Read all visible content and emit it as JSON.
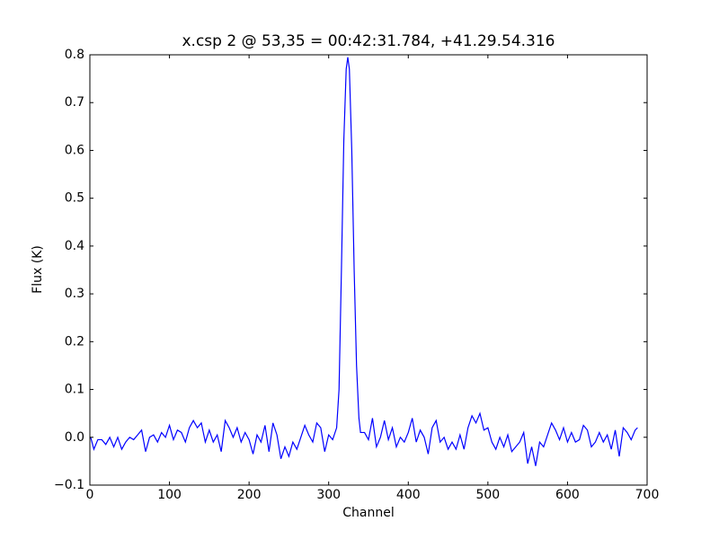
{
  "chart_data": {
    "type": "line",
    "title": "x.csp 2 @ 53,35 = 00:42:31.784, +41.29.54.316",
    "xlabel": "Channel",
    "ylabel": "Flux (K)",
    "color": "#0000ff",
    "xlim": [
      0,
      700
    ],
    "ylim": [
      -0.1,
      0.8
    ],
    "xticks": [
      0,
      100,
      200,
      300,
      400,
      500,
      600,
      700
    ],
    "yticks": [
      {
        "value": -0.1,
        "label": "−0.1"
      },
      {
        "value": 0,
        "label": "0.0"
      },
      0.1,
      0.2,
      0.3,
      0.4,
      0.5,
      0.6,
      0.7,
      0.8
    ],
    "x": [
      1,
      5,
      10,
      15,
      20,
      25,
      30,
      35,
      40,
      45,
      50,
      55,
      60,
      65,
      70,
      75,
      80,
      85,
      90,
      95,
      100,
      105,
      110,
      115,
      120,
      125,
      130,
      135,
      140,
      145,
      150,
      155,
      160,
      165,
      170,
      175,
      180,
      185,
      190,
      195,
      200,
      205,
      210,
      215,
      220,
      225,
      230,
      235,
      240,
      245,
      250,
      255,
      260,
      265,
      270,
      275,
      280,
      285,
      290,
      295,
      300,
      305,
      310,
      313,
      316,
      319,
      322,
      324,
      326,
      329,
      332,
      335,
      338,
      340,
      345,
      350,
      355,
      360,
      365,
      370,
      375,
      380,
      385,
      390,
      395,
      400,
      405,
      410,
      415,
      420,
      425,
      430,
      435,
      440,
      445,
      450,
      455,
      460,
      465,
      470,
      475,
      480,
      485,
      490,
      495,
      500,
      505,
      510,
      515,
      520,
      525,
      530,
      535,
      540,
      545,
      550,
      555,
      560,
      565,
      570,
      575,
      580,
      585,
      590,
      595,
      600,
      605,
      610,
      615,
      620,
      625,
      630,
      635,
      640,
      645,
      650,
      655,
      660,
      665,
      670,
      675,
      680,
      685,
      688
    ],
    "values": [
      0.0,
      -0.025,
      -0.005,
      -0.005,
      -0.015,
      0.0,
      -0.02,
      0.0,
      -0.025,
      -0.01,
      0.0,
      -0.005,
      0.005,
      0.015,
      -0.03,
      0.0,
      0.005,
      -0.01,
      0.01,
      0.0,
      0.025,
      -0.005,
      0.015,
      0.01,
      -0.01,
      0.02,
      0.035,
      0.02,
      0.03,
      -0.01,
      0.015,
      -0.01,
      0.005,
      -0.03,
      0.035,
      0.02,
      0.0,
      0.02,
      -0.01,
      0.01,
      -0.005,
      -0.035,
      0.005,
      -0.01,
      0.025,
      -0.03,
      0.03,
      0.005,
      -0.045,
      -0.02,
      -0.04,
      -0.01,
      -0.025,
      0.0,
      0.025,
      0.005,
      -0.01,
      0.03,
      0.02,
      -0.03,
      0.005,
      -0.005,
      0.02,
      0.1,
      0.35,
      0.62,
      0.77,
      0.795,
      0.77,
      0.6,
      0.35,
      0.15,
      0.04,
      0.01,
      0.01,
      -0.005,
      0.04,
      -0.02,
      0.0,
      0.035,
      -0.005,
      0.02,
      -0.02,
      0.0,
      -0.01,
      0.01,
      0.04,
      -0.01,
      0.015,
      0.0,
      -0.035,
      0.02,
      0.035,
      -0.01,
      0.0,
      -0.025,
      -0.01,
      -0.025,
      0.005,
      -0.025,
      0.02,
      0.045,
      0.03,
      0.05,
      0.015,
      0.02,
      -0.01,
      -0.025,
      0.0,
      -0.02,
      0.005,
      -0.03,
      -0.02,
      -0.01,
      0.01,
      -0.055,
      -0.02,
      -0.06,
      -0.01,
      -0.02,
      0.005,
      0.03,
      0.015,
      -0.005,
      0.02,
      -0.01,
      0.01,
      -0.01,
      -0.005,
      0.025,
      0.015,
      -0.02,
      -0.01,
      0.01,
      -0.01,
      0.005,
      -0.025,
      0.015,
      -0.04,
      0.02,
      0.01,
      -0.005,
      0.015,
      0.02
    ]
  }
}
